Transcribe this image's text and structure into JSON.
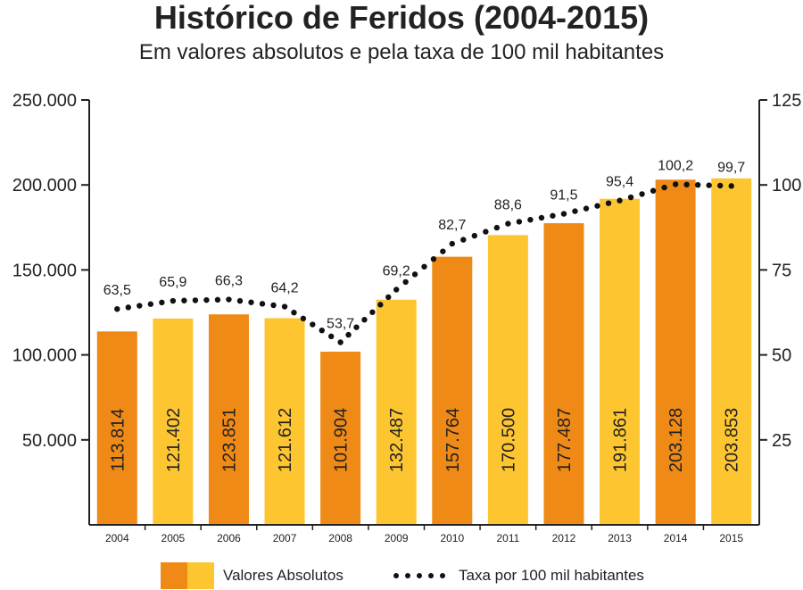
{
  "title": "Histórico de Feridos (2004-2015)",
  "subtitle": "Em valores absolutos e pela taxa de 100 mil habitantes",
  "colors": {
    "bar_odd": "#f08a16",
    "bar_even": "#fdc631",
    "dots": "#111111",
    "axis": "#222222"
  },
  "legend": {
    "absolute_label": "Valores Absolutos",
    "rate_label": "Taxa por 100 mil habitantes"
  },
  "chart_data": {
    "type": "bar",
    "categories": [
      "2004",
      "2005",
      "2006",
      "2007",
      "2008",
      "2009",
      "2010",
      "2011",
      "2012",
      "2013",
      "2014",
      "2015"
    ],
    "series": [
      {
        "name": "Valores Absolutos",
        "type": "bar",
        "axis": "left",
        "values": [
          113814,
          121402,
          123851,
          121612,
          101904,
          132487,
          157764,
          170500,
          177487,
          191861,
          203128,
          203853
        ],
        "labels": [
          "113.814",
          "121.402",
          "123.851",
          "121.612",
          "101.904",
          "132.487",
          "157.764",
          "170.500",
          "177.487",
          "191.861",
          "203.128",
          "203.853"
        ]
      },
      {
        "name": "Taxa por 100 mil habitantes",
        "type": "line",
        "style": "dotted",
        "axis": "right",
        "values": [
          63.5,
          65.9,
          66.3,
          64.2,
          53.7,
          69.2,
          82.7,
          88.6,
          91.5,
          95.4,
          100.2,
          99.7
        ],
        "labels": [
          "63,5",
          "65,9",
          "66,3",
          "64,2",
          "53,7",
          "69,2",
          "82,7",
          "88,6",
          "91,5",
          "95,4",
          "100,2",
          "99,7"
        ]
      }
    ],
    "y_left": {
      "ylim": [
        0,
        250000
      ],
      "ticks": [
        50000,
        100000,
        150000,
        200000,
        250000
      ],
      "tick_labels": [
        "50.000",
        "100.000",
        "150.000",
        "200.000",
        "250.000"
      ]
    },
    "y_right": {
      "ylim": [
        0,
        125
      ],
      "ticks": [
        25,
        50,
        75,
        100,
        125
      ],
      "tick_labels": [
        "25",
        "50",
        "75",
        "100",
        "125"
      ]
    },
    "grid": false,
    "legend_position": "bottom"
  }
}
